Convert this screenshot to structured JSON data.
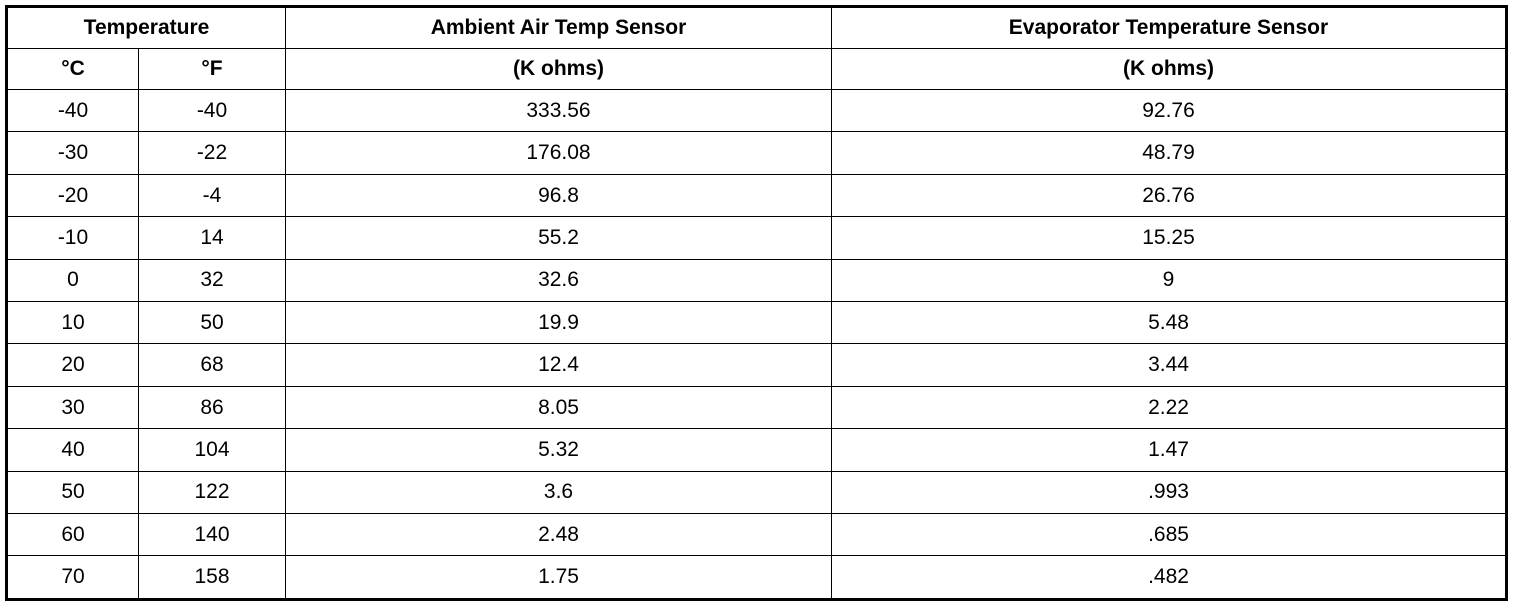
{
  "header": {
    "temperature": "Temperature",
    "ambient": "Ambient Air Temp Sensor",
    "evaporator": "Evaporator Temperature Sensor"
  },
  "subheader": [
    "°C",
    "°F",
    "(K ohms)",
    "(K ohms)"
  ],
  "rows": [
    [
      "-40",
      "-40",
      "333.56",
      "92.76"
    ],
    [
      "-30",
      "-22",
      "176.08",
      "48.79"
    ],
    [
      "-20",
      "-4",
      "96.8",
      "26.76"
    ],
    [
      "-10",
      "14",
      "55.2",
      "15.25"
    ],
    [
      "0",
      "32",
      "32.6",
      "9"
    ],
    [
      "10",
      "50",
      "19.9",
      "5.48"
    ],
    [
      "20",
      "68",
      "12.4",
      "3.44"
    ],
    [
      "30",
      "86",
      "8.05",
      "2.22"
    ],
    [
      "40",
      "104",
      "5.32",
      "1.47"
    ],
    [
      "50",
      "122",
      "3.6",
      ".993"
    ],
    [
      "60",
      "140",
      "2.48",
      ".685"
    ],
    [
      "70",
      "158",
      "1.75",
      ".482"
    ]
  ]
}
